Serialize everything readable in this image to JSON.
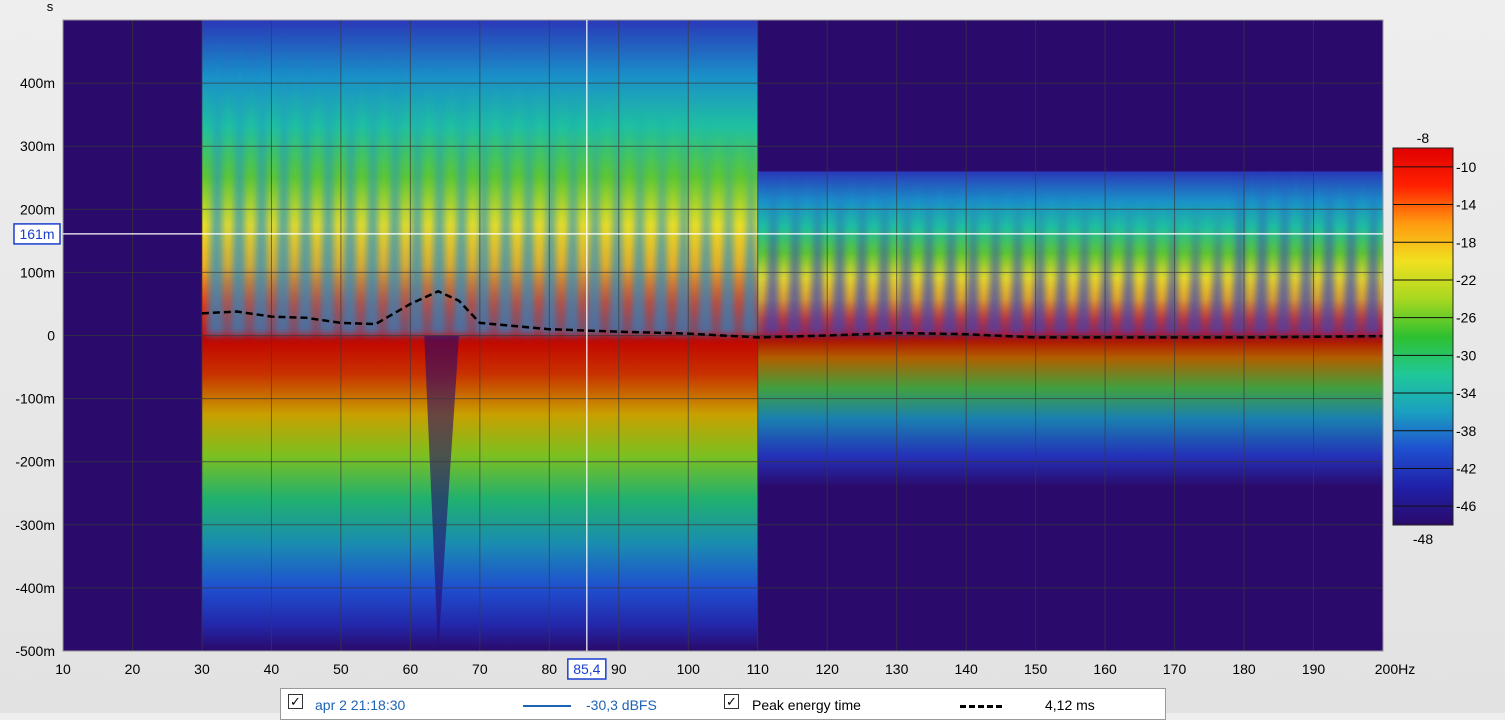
{
  "chart_data": {
    "type": "heatmap",
    "title": "",
    "xlabel": "",
    "ylabel": "s",
    "x_unit": "Hz",
    "x_range": [
      10,
      200
    ],
    "y_range": [
      -0.5,
      0.5
    ],
    "x_ticks": [
      "10",
      "20",
      "30",
      "40",
      "50",
      "60",
      "70",
      "80",
      "90",
      "100",
      "110",
      "120",
      "130",
      "140",
      "150",
      "160",
      "170",
      "180",
      "190",
      "200Hz"
    ],
    "y_ticks": [
      "400m",
      "300m",
      "200m",
      "100m",
      "0",
      "-100m",
      "-200m",
      "-300m",
      "-400m",
      "-500m"
    ],
    "grid": true,
    "data_start_hz": 30,
    "cursor": {
      "x_label": "85,4",
      "y_label": "161m",
      "x_hz": 85.4,
      "y_s": 0.161
    },
    "colorbar": {
      "top_label": "-8",
      "bottom_label": "-48",
      "ticks": [
        "-10",
        "-14",
        "-18",
        "-22",
        "-26",
        "-30",
        "-34",
        "-38",
        "-42",
        "-46"
      ],
      "range": [
        -48,
        -8
      ],
      "colors": [
        "#2a0a6a",
        "#2020a8",
        "#1f4fd0",
        "#1aa0c0",
        "#20c898",
        "#2fc030",
        "#a8d820",
        "#f0e020",
        "#ff9a10",
        "#ff2000",
        "#e00000"
      ]
    },
    "series": [
      {
        "name": "Peak energy time",
        "style": "dashed",
        "color": "#000000",
        "x": [
          30,
          35,
          40,
          45,
          50,
          55,
          60,
          64,
          67,
          70,
          80,
          90,
          100,
          110,
          120,
          130,
          140,
          150,
          160,
          170,
          180,
          190,
          200
        ],
        "y": [
          0.035,
          0.038,
          0.03,
          0.028,
          0.02,
          0.018,
          0.05,
          0.07,
          0.055,
          0.02,
          0.01,
          0.006,
          0.003,
          -0.003,
          0.0,
          0.004,
          0.002,
          -0.003,
          -0.003,
          -0.003,
          -0.003,
          -0.002,
          -0.001
        ]
      }
    ]
  },
  "legend": {
    "measurement_name": "apr 2 21:18:30",
    "measurement_value": "-30,3 dBFS",
    "peak_label": "Peak energy time",
    "peak_value": "4,12 ms",
    "check_mark": "✓",
    "measurement_color": "#1f63b4"
  }
}
